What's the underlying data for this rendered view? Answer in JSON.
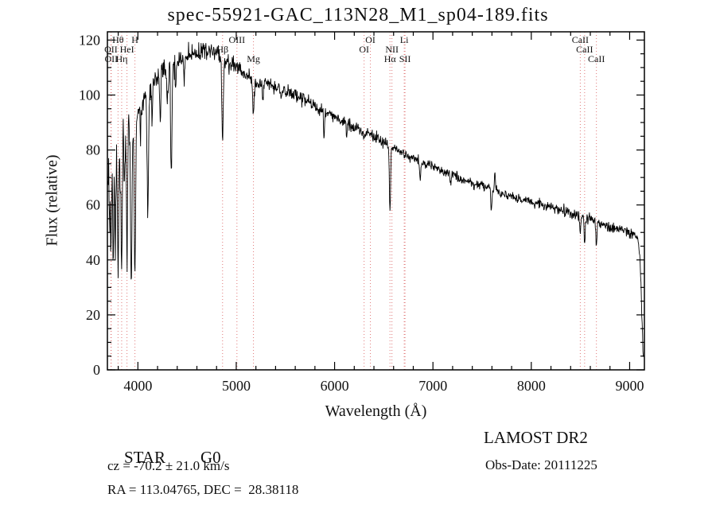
{
  "chart_data": {
    "type": "line",
    "title": "spec-55921-GAC_113N28_M1_sp04-189.fits",
    "xlabel": "Wavelength (Å)",
    "ylabel": "Flux (relative)",
    "xlim": [
      3690,
      9150
    ],
    "ylim": [
      0,
      123
    ],
    "x_major_ticks": [
      4000,
      5000,
      6000,
      7000,
      8000,
      9000
    ],
    "x_minor_step": 200,
    "y_major_ticks": [
      0,
      20,
      40,
      60,
      80,
      100,
      120
    ],
    "y_minor_step": 5,
    "grid": false,
    "line_color": "#000000",
    "marker_line_color": "#e07878",
    "sample_step": 4,
    "continuum": [
      [
        3695,
        74
      ],
      [
        3720,
        76
      ],
      [
        3745,
        78
      ],
      [
        3770,
        80
      ],
      [
        3800,
        83
      ],
      [
        3830,
        85
      ],
      [
        3860,
        86
      ],
      [
        3890,
        88
      ],
      [
        3920,
        89
      ],
      [
        3950,
        90
      ],
      [
        3980,
        92
      ],
      [
        4010,
        94
      ],
      [
        4050,
        97
      ],
      [
        4100,
        100
      ],
      [
        4150,
        103
      ],
      [
        4200,
        106
      ],
      [
        4250,
        108
      ],
      [
        4300,
        110
      ],
      [
        4350,
        111
      ],
      [
        4400,
        112
      ],
      [
        4450,
        113
      ],
      [
        4500,
        114
      ],
      [
        4550,
        115
      ],
      [
        4600,
        115
      ],
      [
        4650,
        116
      ],
      [
        4700,
        116
      ],
      [
        4750,
        115.5
      ],
      [
        4800,
        115
      ],
      [
        4850,
        114
      ],
      [
        4900,
        112
      ],
      [
        4950,
        111
      ],
      [
        5000,
        110
      ],
      [
        5050,
        109
      ],
      [
        5100,
        107
      ],
      [
        5150,
        106
      ],
      [
        5200,
        105
      ],
      [
        5300,
        104
      ],
      [
        5400,
        103
      ],
      [
        5500,
        101
      ],
      [
        5600,
        100
      ],
      [
        5700,
        98
      ],
      [
        5800,
        96
      ],
      [
        5900,
        94
      ],
      [
        6000,
        92
      ],
      [
        6100,
        90
      ],
      [
        6200,
        88
      ],
      [
        6300,
        87
      ],
      [
        6400,
        85
      ],
      [
        6500,
        83
      ],
      [
        6600,
        81
      ],
      [
        6700,
        79
      ],
      [
        6800,
        77
      ],
      [
        6900,
        75
      ],
      [
        7000,
        74
      ],
      [
        7100,
        72
      ],
      [
        7200,
        71
      ],
      [
        7300,
        69
      ],
      [
        7400,
        68
      ],
      [
        7500,
        67
      ],
      [
        7600,
        66
      ],
      [
        7700,
        64
      ],
      [
        7800,
        63
      ],
      [
        7900,
        62
      ],
      [
        8000,
        61
      ],
      [
        8100,
        60
      ],
      [
        8200,
        59
      ],
      [
        8300,
        58
      ],
      [
        8400,
        57
      ],
      [
        8500,
        56
      ],
      [
        8600,
        55
      ],
      [
        8700,
        53
      ],
      [
        8800,
        52
      ],
      [
        8900,
        51
      ],
      [
        9000,
        50
      ],
      [
        9050,
        49
      ],
      [
        9090,
        47
      ],
      [
        9110,
        38
      ],
      [
        9125,
        18
      ],
      [
        9140,
        2
      ]
    ],
    "absorption_lines": [
      {
        "wl": 3712,
        "depth": 25,
        "sigma": 5
      },
      {
        "wl": 3727,
        "depth": 35,
        "sigma": 5
      },
      {
        "wl": 3750,
        "depth": 42,
        "sigma": 5
      },
      {
        "wl": 3771,
        "depth": 38,
        "sigma": 5
      },
      {
        "wl": 3798,
        "depth": 46,
        "sigma": 6
      },
      {
        "wl": 3820,
        "depth": 20,
        "sigma": 4
      },
      {
        "wl": 3835,
        "depth": 50,
        "sigma": 6
      },
      {
        "wl": 3862,
        "depth": 20,
        "sigma": 4
      },
      {
        "wl": 3889,
        "depth": 48,
        "sigma": 6
      },
      {
        "wl": 3933,
        "depth": 63,
        "sigma": 7
      },
      {
        "wl": 3970,
        "depth": 56,
        "sigma": 7
      },
      {
        "wl": 4026,
        "depth": 12,
        "sigma": 4
      },
      {
        "wl": 4101,
        "depth": 44,
        "sigma": 7
      },
      {
        "wl": 4144,
        "depth": 10,
        "sigma": 4
      },
      {
        "wl": 4227,
        "depth": 18,
        "sigma": 5
      },
      {
        "wl": 4300,
        "depth": 14,
        "sigma": 6
      },
      {
        "wl": 4340,
        "depth": 40,
        "sigma": 7
      },
      {
        "wl": 4383,
        "depth": 12,
        "sigma": 4
      },
      {
        "wl": 4471,
        "depth": 8,
        "sigma": 4
      },
      {
        "wl": 4861,
        "depth": 30,
        "sigma": 7
      },
      {
        "wl": 5175,
        "depth": 12,
        "sigma": 8
      },
      {
        "wl": 5270,
        "depth": 6,
        "sigma": 6
      },
      {
        "wl": 5893,
        "depth": 10,
        "sigma": 6
      },
      {
        "wl": 6122,
        "depth": 5,
        "sigma": 4
      },
      {
        "wl": 6300,
        "depth": 4,
        "sigma": 4
      },
      {
        "wl": 6563,
        "depth": 24,
        "sigma": 6
      },
      {
        "wl": 6870,
        "depth": 7,
        "sigma": 6
      },
      {
        "wl": 7180,
        "depth": 4,
        "sigma": 6
      },
      {
        "wl": 7594,
        "depth": 8,
        "sigma": 6
      },
      {
        "wl": 8498,
        "depth": 6,
        "sigma": 6
      },
      {
        "wl": 8542,
        "depth": 9,
        "sigma": 6
      },
      {
        "wl": 8662,
        "depth": 7,
        "sigma": 6
      }
    ],
    "emission_spikes": [
      {
        "wl": 7630,
        "height": 8,
        "sigma": 4
      }
    ],
    "noise_bands": [
      [
        3690,
        3950,
        6.0
      ],
      [
        3950,
        4400,
        4.5
      ],
      [
        4400,
        5000,
        3.0
      ],
      [
        5000,
        5800,
        2.2
      ],
      [
        5800,
        6600,
        1.9
      ],
      [
        6600,
        7400,
        1.6
      ],
      [
        7400,
        8300,
        1.5
      ],
      [
        8300,
        9150,
        1.8
      ]
    ],
    "spectral_markers": [
      {
        "label": "Hθ",
        "wl": 3798,
        "row": 1
      },
      {
        "label": "H",
        "wl": 3970,
        "row": 1
      },
      {
        "label": "OII",
        "wl": 3726,
        "row": 2
      },
      {
        "label": "HeI",
        "wl": 3889,
        "row": 2
      },
      {
        "label": "OII",
        "wl": 3729,
        "row": 3
      },
      {
        "label": "Hη",
        "wl": 3835,
        "row": 3
      },
      {
        "label": "OIII",
        "wl": 5007,
        "row": 1
      },
      {
        "label": "Hβ",
        "wl": 4861,
        "row": 2
      },
      {
        "label": "Mg",
        "wl": 5175,
        "row": 3
      },
      {
        "label": "OI",
        "wl": 6364,
        "row": 1
      },
      {
        "label": "OI",
        "wl": 6300,
        "row": 2
      },
      {
        "label": "Li",
        "wl": 6708,
        "row": 1
      },
      {
        "label": "NII",
        "wl": 6583,
        "row": 2
      },
      {
        "label": "Hα",
        "wl": 6563,
        "row": 3
      },
      {
        "label": "SII",
        "wl": 6716,
        "row": 3
      },
      {
        "label": "CaII",
        "wl": 8498,
        "row": 1
      },
      {
        "label": "CaII",
        "wl": 8542,
        "row": 2
      },
      {
        "label": "CaII",
        "wl": 8662,
        "row": 3
      }
    ]
  },
  "footer": {
    "object_class": "STAR",
    "subclass": "G0",
    "survey": "LAMOST DR2",
    "cz": "cz = -70.2 ± 21.0 km/s",
    "obs_date": "Obs-Date: 20111225",
    "coords": "RA = 113.04765, DEC =  28.38118"
  }
}
